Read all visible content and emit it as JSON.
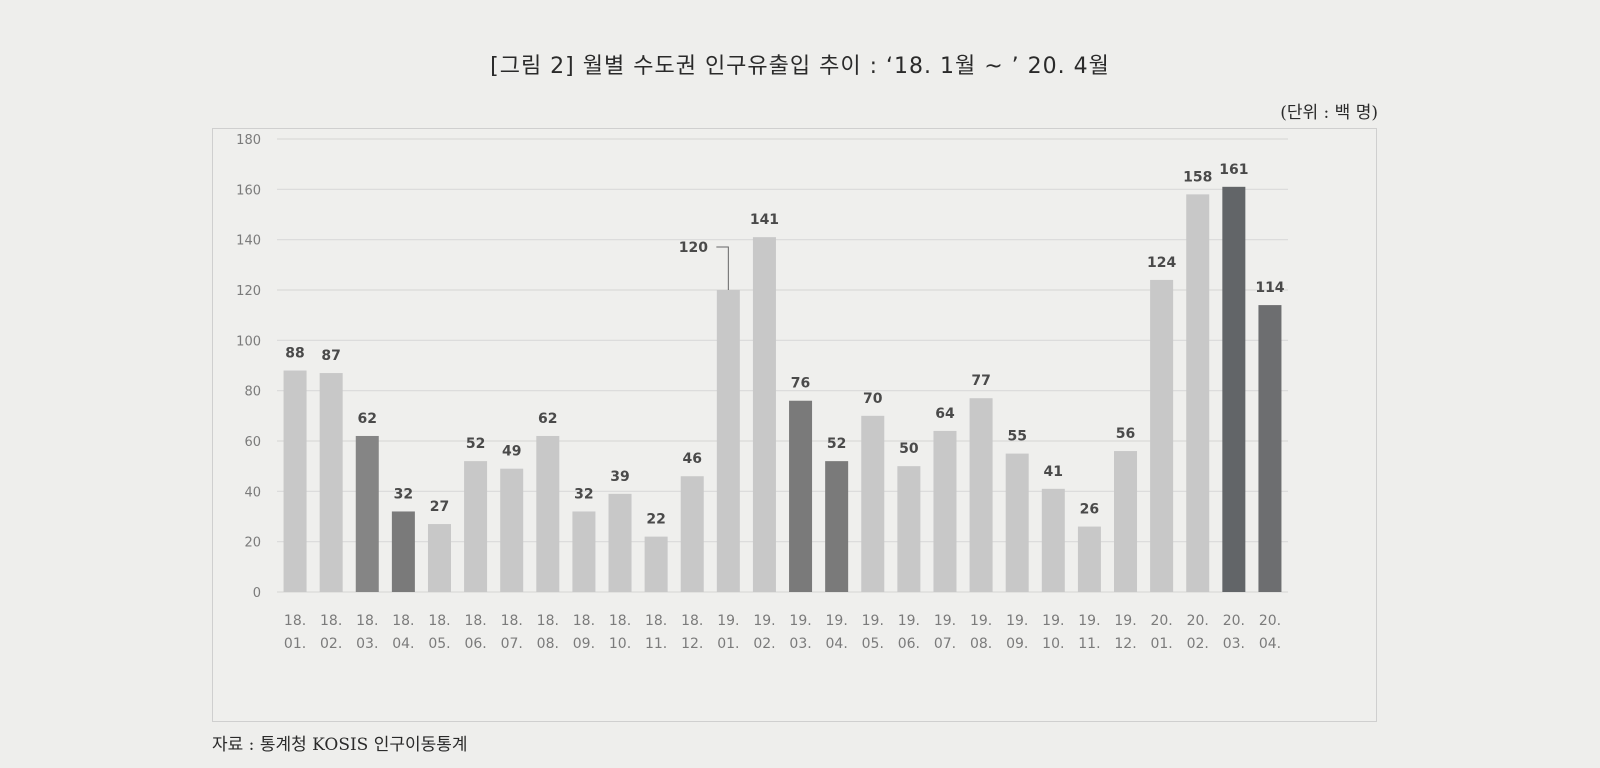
{
  "title": "[그림 2] 월별 수도권 인구유출입 추이 : ‘18. 1월 ~ ’ 20. 4월",
  "unit": "(단위 : 백 명)",
  "source": "자료 : 통계청 KOSIS 인구이동통계",
  "chart_data": {
    "type": "bar",
    "title": "[그림 2] 월별 수도권 인구유출입 추이 : ‘18. 1월 ~ ’ 20. 4월",
    "xlabel": "",
    "ylabel": "",
    "ylim": [
      0,
      180
    ],
    "yticks": [
      0,
      20,
      40,
      60,
      80,
      100,
      120,
      140,
      160,
      180
    ],
    "grid": true,
    "legend": "none",
    "categories": [
      [
        "18.",
        "01."
      ],
      [
        "18.",
        "02."
      ],
      [
        "18.",
        "03."
      ],
      [
        "18.",
        "04."
      ],
      [
        "18.",
        "05."
      ],
      [
        "18.",
        "06."
      ],
      [
        "18.",
        "07."
      ],
      [
        "18.",
        "08."
      ],
      [
        "18.",
        "09."
      ],
      [
        "18.",
        "10."
      ],
      [
        "18.",
        "11."
      ],
      [
        "18.",
        "12."
      ],
      [
        "19.",
        "01."
      ],
      [
        "19.",
        "02."
      ],
      [
        "19.",
        "03."
      ],
      [
        "19.",
        "04."
      ],
      [
        "19.",
        "05."
      ],
      [
        "19.",
        "06."
      ],
      [
        "19.",
        "07."
      ],
      [
        "19.",
        "08."
      ],
      [
        "19.",
        "09."
      ],
      [
        "19.",
        "10."
      ],
      [
        "19.",
        "11."
      ],
      [
        "19.",
        "12."
      ],
      [
        "20.",
        "01."
      ],
      [
        "20.",
        "02."
      ],
      [
        "20.",
        "03."
      ],
      [
        "20.",
        "04."
      ]
    ],
    "values": [
      88,
      87,
      62,
      32,
      27,
      52,
      49,
      62,
      32,
      39,
      22,
      46,
      120,
      141,
      76,
      52,
      70,
      50,
      64,
      77,
      55,
      41,
      26,
      56,
      124,
      158,
      161,
      114
    ],
    "bar_colors": [
      "#c8c8c8",
      "#c8c8c8",
      "#858585",
      "#7a7a7a",
      "#c8c8c8",
      "#c8c8c8",
      "#c8c8c8",
      "#c8c8c8",
      "#c8c8c8",
      "#c8c8c8",
      "#c8c8c8",
      "#c8c8c8",
      "#c8c8c8",
      "#c8c8c8",
      "#7a7a7a",
      "#7a7a7a",
      "#c8c8c8",
      "#c8c8c8",
      "#c8c8c8",
      "#c8c8c8",
      "#c8c8c8",
      "#c8c8c8",
      "#c8c8c8",
      "#c8c8c8",
      "#c8c8c8",
      "#c8c8c8",
      "#626568",
      "#6d6e70"
    ],
    "colors": {
      "gridline": "#d9d9d9",
      "axis_text": "#7b7b7b",
      "label_text": "#4a4a4a"
    }
  }
}
